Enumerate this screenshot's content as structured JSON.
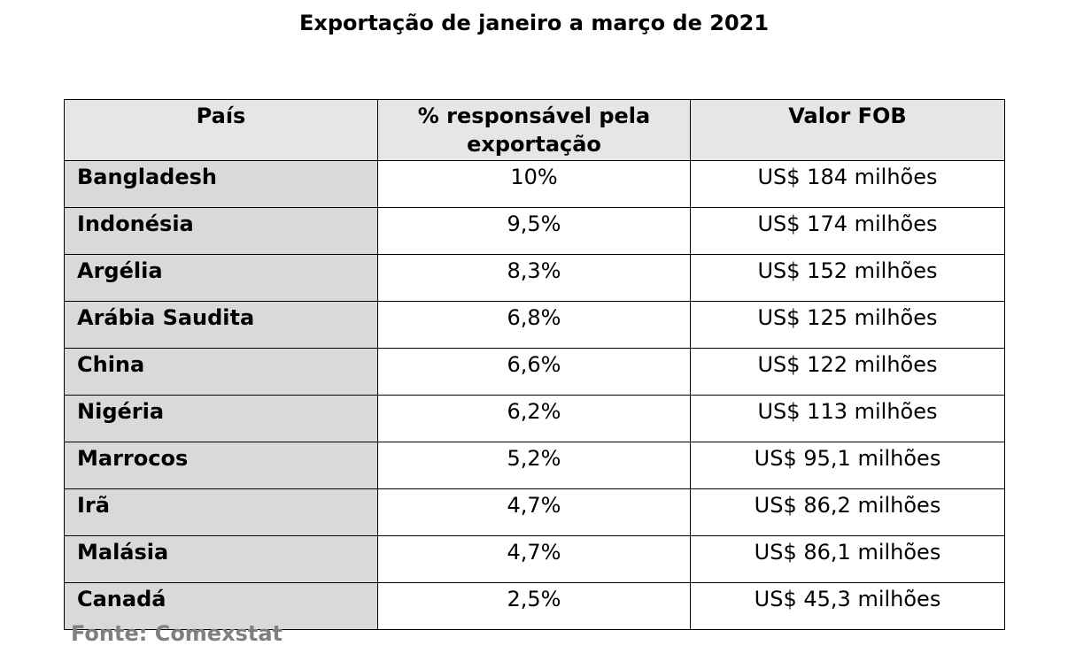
{
  "chart_data": {
    "type": "table",
    "title": "Exportação de janeiro a março de 2021",
    "columns": [
      "País",
      "% responsável pela exportação",
      "Valor FOB"
    ],
    "rows": [
      {
        "country": "Bangladesh",
        "percent": "10%",
        "fob": "US$ 184 milhões"
      },
      {
        "country": "Indonésia",
        "percent": "9,5%",
        "fob": "US$ 174 milhões"
      },
      {
        "country": "Argélia",
        "percent": "8,3%",
        "fob": "US$ 152 milhões"
      },
      {
        "country": "Arábia Saudita",
        "percent": "6,8%",
        "fob": "US$ 125 milhões"
      },
      {
        "country": "China",
        "percent": "6,6%",
        "fob": "US$ 122 milhões"
      },
      {
        "country": "Nigéria",
        "percent": "6,2%",
        "fob": "US$ 113 milhões"
      },
      {
        "country": "Marrocos",
        "percent": "5,2%",
        "fob": "US$ 95,1 milhões"
      },
      {
        "country": "Irã",
        "percent": "4,7%",
        "fob": "US$ 86,2 milhões"
      },
      {
        "country": "Malásia",
        "percent": "4,7%",
        "fob": "US$ 86,1 milhões"
      },
      {
        "country": "Canadá",
        "percent": "2,5%",
        "fob": "US$ 45,3 milhões"
      }
    ],
    "source": "Fonte: Comexstat"
  },
  "colors": {
    "header_bg": "#e6e6e6",
    "country_bg": "#d9d9d9",
    "source_text": "#808080"
  }
}
